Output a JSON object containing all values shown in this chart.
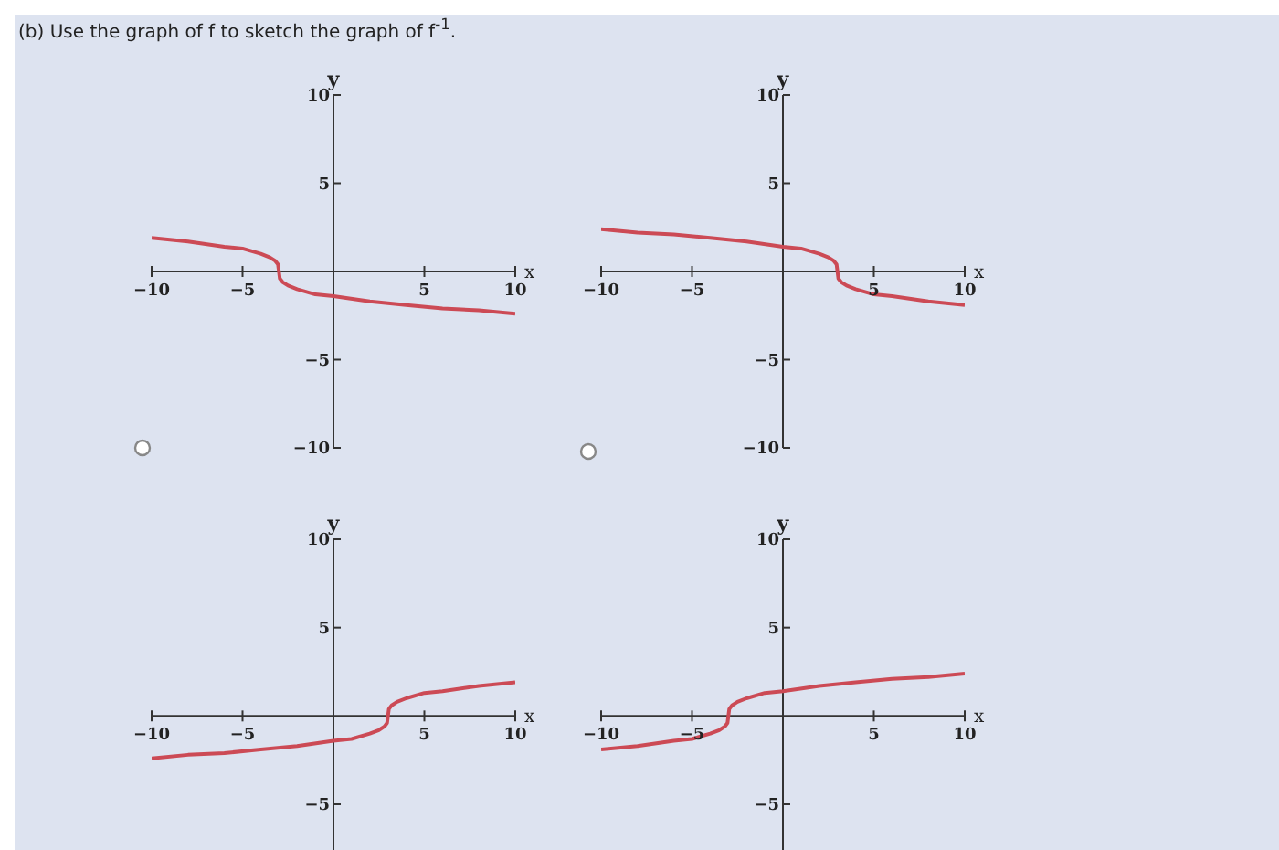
{
  "chart_data": [
    {
      "type": "line",
      "title": "(b) Use the graph of f to sketch the graph of f$^{-1}$.",
      "xlabel": "x",
      "ylabel": "y",
      "xlim": [
        -10,
        10
      ],
      "ylim": [
        -10,
        10
      ],
      "xticks": [
        -10,
        -5,
        5,
        10
      ],
      "yticks": [
        -10,
        -5,
        5,
        10
      ],
      "marker": "none",
      "series": [
        {
          "color": "#cc4a55",
          "x": [
            -10,
            -8,
            -6,
            -5,
            -4,
            -3.5,
            -3.2,
            -3.05,
            -3,
            -2.95,
            -2.8,
            -2.5,
            -2,
            -1,
            0,
            2,
            4,
            6,
            8,
            10
          ],
          "values": [
            1.9,
            1.7,
            1.4,
            1.3,
            1,
            0.8,
            0.6,
            0.4,
            0,
            -0.4,
            -0.6,
            -0.8,
            -1,
            -1.3,
            -1.4,
            -1.7,
            -1.9,
            -2.1,
            -2.2,
            -2.4
          ]
        }
      ]
    },
    {
      "type": "line",
      "xlabel": "x",
      "ylabel": "y",
      "xlim": [
        -10,
        10
      ],
      "ylim": [
        -10,
        10
      ],
      "xticks": [
        -10,
        -5,
        5,
        10
      ],
      "yticks": [
        -10,
        -5,
        5,
        10
      ],
      "marker": "none",
      "series": [
        {
          "color": "#cc4a55",
          "x": [
            -10,
            -8,
            -6,
            -4,
            -2,
            0,
            1,
            2,
            2.5,
            2.8,
            2.95,
            3,
            3.05,
            3.2,
            3.5,
            4,
            5,
            6,
            8,
            10
          ],
          "values": [
            2.4,
            2.2,
            2.1,
            1.9,
            1.7,
            1.4,
            1.3,
            1,
            0.8,
            0.6,
            0.4,
            0,
            -0.4,
            -0.6,
            -0.8,
            -1,
            -1.3,
            -1.4,
            -1.7,
            -1.9
          ]
        }
      ]
    },
    {
      "type": "line",
      "xlabel": "x",
      "ylabel": "y",
      "xlim": [
        -10,
        10
      ],
      "ylim": [
        -8,
        10
      ],
      "xticks": [
        -10,
        -5,
        5,
        10
      ],
      "yticks": [
        -5,
        5,
        10
      ],
      "marker": "none",
      "series": [
        {
          "color": "#cc4a55",
          "x": [
            -10,
            -8,
            -6,
            -4,
            -2,
            0,
            1,
            2,
            2.5,
            2.8,
            2.95,
            3,
            3.05,
            3.2,
            3.5,
            4,
            5,
            6,
            8,
            10
          ],
          "values": [
            -2.4,
            -2.2,
            -2.1,
            -1.9,
            -1.7,
            -1.4,
            -1.3,
            -1,
            -0.8,
            -0.6,
            -0.4,
            0,
            0.4,
            0.6,
            0.8,
            1,
            1.3,
            1.4,
            1.7,
            1.9
          ]
        }
      ]
    },
    {
      "type": "line",
      "xlabel": "x",
      "ylabel": "y",
      "xlim": [
        -10,
        10
      ],
      "ylim": [
        -8,
        10
      ],
      "xticks": [
        -10,
        -5,
        5,
        10
      ],
      "yticks": [
        -5,
        5,
        10
      ],
      "marker": "none",
      "series": [
        {
          "color": "#cc4a55",
          "x": [
            -10,
            -8,
            -6,
            -5,
            -4,
            -3.5,
            -3.2,
            -3.05,
            -3,
            -2.95,
            -2.8,
            -2.5,
            -2,
            -1,
            0,
            2,
            4,
            6,
            8,
            10
          ],
          "values": [
            -1.9,
            -1.7,
            -1.4,
            -1.3,
            -1,
            -0.8,
            -0.6,
            -0.4,
            0,
            0.4,
            0.6,
            0.8,
            1,
            1.3,
            1.4,
            1.7,
            1.9,
            2.1,
            2.2,
            2.4
          ]
        }
      ]
    }
  ]
}
